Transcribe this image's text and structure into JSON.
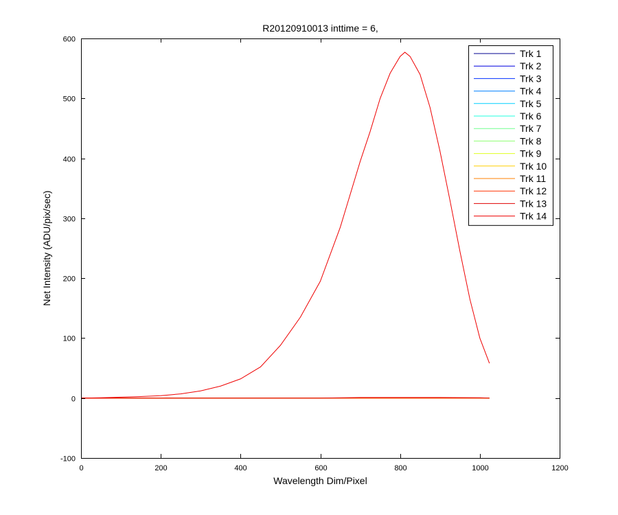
{
  "chart_data": {
    "type": "line",
    "title": "R20120910013 inttime = 6,",
    "xlabel": "Wavelength Dim/Pixel",
    "ylabel": "Net Intensity (ADU/pix/sec)",
    "xlim": [
      0,
      1200
    ],
    "ylim": [
      -100,
      600
    ],
    "xticks": [
      0,
      200,
      400,
      600,
      800,
      1000,
      1200
    ],
    "yticks": [
      -100,
      0,
      100,
      200,
      300,
      400,
      500,
      600
    ],
    "grid": false,
    "legend_position": "top-right",
    "series": [
      {
        "name": "Trk 1",
        "color": "#00008F",
        "x": [
          0,
          1024
        ],
        "y": [
          0,
          0
        ]
      },
      {
        "name": "Trk 2",
        "color": "#0000DF",
        "x": [
          0,
          1024
        ],
        "y": [
          0,
          0
        ]
      },
      {
        "name": "Trk 3",
        "color": "#0030FF",
        "x": [
          0,
          1024
        ],
        "y": [
          0,
          0
        ]
      },
      {
        "name": "Trk 4",
        "color": "#0080FF",
        "x": [
          0,
          1024
        ],
        "y": [
          0,
          0
        ]
      },
      {
        "name": "Trk 5",
        "color": "#00CFFF",
        "x": [
          0,
          1024
        ],
        "y": [
          0,
          0
        ]
      },
      {
        "name": "Trk 6",
        "color": "#20FFDF",
        "x": [
          0,
          1024
        ],
        "y": [
          0,
          0
        ]
      },
      {
        "name": "Trk 7",
        "color": "#70FF8F",
        "x": [
          0,
          1024
        ],
        "y": [
          0,
          0
        ]
      },
      {
        "name": "Trk 8",
        "color": "#8FFF70",
        "x": [
          0,
          1024
        ],
        "y": [
          0,
          0
        ]
      },
      {
        "name": "Trk 9",
        "color": "#DFFF20",
        "x": [
          0,
          1024
        ],
        "y": [
          0,
          0
        ]
      },
      {
        "name": "Trk 10",
        "color": "#FFCF00",
        "x": [
          0,
          1024
        ],
        "y": [
          0,
          0
        ]
      },
      {
        "name": "Trk 11",
        "color": "#FF8000",
        "x": [
          0,
          1024
        ],
        "y": [
          0,
          0
        ]
      },
      {
        "name": "Trk 12",
        "color": "#FF3000",
        "x": [
          0,
          1024
        ],
        "y": [
          0,
          0
        ]
      },
      {
        "name": "Trk 13",
        "color": "#DF0000",
        "x": [
          0,
          600,
          700,
          800,
          900,
          1000,
          1024
        ],
        "y": [
          0,
          0,
          1,
          1,
          1,
          0.5,
          0
        ]
      },
      {
        "name": "Trk 14",
        "color": "#EE0000",
        "x": [
          0,
          50,
          100,
          150,
          200,
          250,
          300,
          350,
          400,
          450,
          500,
          550,
          600,
          650,
          700,
          725,
          750,
          775,
          800,
          812,
          825,
          850,
          875,
          900,
          925,
          950,
          975,
          1000,
          1024
        ],
        "y": [
          0,
          0.5,
          1.5,
          2.5,
          4,
          7,
          12,
          20,
          32,
          52,
          88,
          135,
          195,
          285,
          395,
          445,
          500,
          542,
          570,
          577,
          570,
          540,
          485,
          412,
          330,
          245,
          165,
          100,
          58
        ]
      }
    ]
  }
}
